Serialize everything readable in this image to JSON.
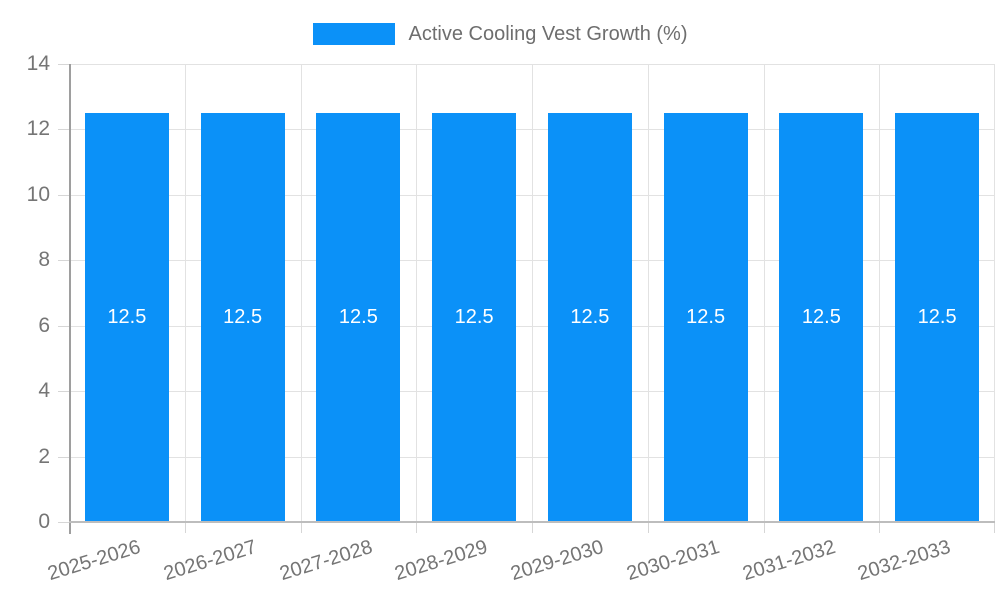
{
  "legend": {
    "label": "Active Cooling Vest Growth (%)"
  },
  "colors": {
    "bar": "#0b91f8",
    "grid": "#e2e2e2",
    "y_axis_line": "#9e9e9e",
    "x_axis_line": "#bdbdbd",
    "tick": "#d6d6d6",
    "axis_label_text": "#757575",
    "legend_text": "#6e6e6e",
    "value_label_text": "#ffffff",
    "background": "#ffffff"
  },
  "chart_data": {
    "type": "bar",
    "title": "Active Cooling Vest Growth (%)",
    "categories": [
      "2025-2026",
      "2026-2027",
      "2027-2028",
      "2028-2029",
      "2029-2030",
      "2030-2031",
      "2031-2032",
      "2032-2033"
    ],
    "values": [
      12.5,
      12.5,
      12.5,
      12.5,
      12.5,
      12.5,
      12.5,
      12.5
    ],
    "value_labels": [
      "12.5",
      "12.5",
      "12.5",
      "12.5",
      "12.5",
      "12.5",
      "12.5",
      "12.5"
    ],
    "xlabel": "",
    "ylabel": "",
    "ylim": [
      0,
      14
    ],
    "yticks": [
      0,
      2,
      4,
      6,
      8,
      10,
      12,
      14
    ],
    "grid": true,
    "legend_position": "top",
    "x_label_rotation_deg": -17
  }
}
